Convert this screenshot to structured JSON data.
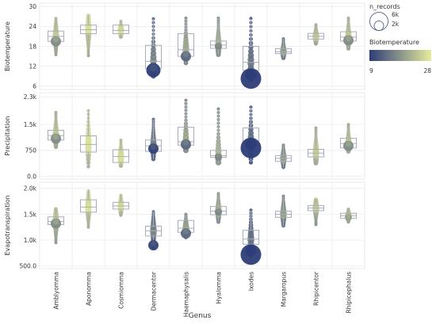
{
  "chart_data": {
    "type": "scatter",
    "xlabel": "Genus",
    "categories": [
      "Amblyomma",
      "Aponomma",
      "Cosmiomma",
      "Dermacentor",
      "Haemaphysalis",
      "Hyalomma",
      "Ixodes",
      "Margaropus",
      "Rhipicentor",
      "Rhipicephalus"
    ],
    "legend": {
      "size_title": "n_records",
      "size_labels": [
        "6k",
        "2k"
      ],
      "color_title": "Biotemperature",
      "color_min": "9",
      "color_max": "28",
      "color_low_hex": "#2e3d78",
      "color_high_hex": "#e6ec9a"
    },
    "panels": [
      {
        "ylabel": "Biotemperature",
        "ylim": [
          5,
          31
        ],
        "ticks": [
          6,
          12,
          18,
          24,
          30
        ],
        "tick_labels": [
          "6",
          "12",
          "18",
          "24",
          "30"
        ],
        "groups": [
          {
            "q1": 19.5,
            "med": 21.0,
            "q3": 22.6,
            "wlo": 18.0,
            "whi": 26.4,
            "ymin": 15.5,
            "ymax": 26.4,
            "big": 2,
            "bigv": 19.5,
            "ctemp": 22
          },
          {
            "q1": 21.8,
            "med": 23.0,
            "q3": 24.4,
            "wlo": 19.8,
            "whi": 27.2,
            "ymin": 15.2,
            "ymax": 27.2,
            "big": 0,
            "bigv": 23.0,
            "ctemp": 24
          },
          {
            "q1": 21.8,
            "med": 22.8,
            "q3": 24.4,
            "wlo": 20.8,
            "whi": 25.6,
            "ymin": 20.8,
            "ymax": 25.6,
            "big": 0,
            "bigv": 22.5,
            "ctemp": 24
          },
          {
            "q1": 11.3,
            "med": 13.5,
            "q3": 18.3,
            "wlo": 9.0,
            "whi": 26.3,
            "ymin": 9.0,
            "ymax": 26.3,
            "big": 3,
            "bigv": 10.8,
            "ctemp": 14
          },
          {
            "q1": 15.0,
            "med": 17.0,
            "q3": 21.8,
            "wlo": 13.0,
            "whi": 26.5,
            "ymin": 13.0,
            "ymax": 26.5,
            "big": 2,
            "bigv": 15.0,
            "ctemp": 18
          },
          {
            "q1": 17.4,
            "med": 18.4,
            "q3": 19.6,
            "wlo": 15.5,
            "whi": 26.5,
            "ymin": 15.5,
            "ymax": 26.5,
            "big": 1,
            "bigv": 18.0,
            "ctemp": 19
          },
          {
            "q1": 10.7,
            "med": 13.2,
            "q3": 18.0,
            "wlo": 7.8,
            "whi": 26.4,
            "ymin": 7.8,
            "ymax": 26.4,
            "big": 4,
            "bigv": 8.3,
            "ctemp": 12
          },
          {
            "q1": 15.8,
            "med": 16.4,
            "q3": 17.3,
            "wlo": 14.5,
            "whi": 20.3,
            "ymin": 14.5,
            "ymax": 20.3,
            "big": 0,
            "bigv": 16.4,
            "ctemp": 17
          },
          {
            "q1": 20.2,
            "med": 21.0,
            "q3": 21.9,
            "wlo": 18.8,
            "whi": 24.5,
            "ymin": 18.8,
            "ymax": 24.5,
            "big": 0,
            "bigv": 21.0,
            "ctemp": 22
          },
          {
            "q1": 19.6,
            "med": 20.8,
            "q3": 22.4,
            "wlo": 17.3,
            "whi": 26.5,
            "ymin": 17.3,
            "ymax": 26.5,
            "big": 2,
            "bigv": 19.8,
            "ctemp": 22
          }
        ]
      },
      {
        "ylabel": "Precipitation",
        "ylim": [
          -80,
          2420
        ],
        "ticks": [
          0,
          750,
          1500,
          2300
        ],
        "tick_labels": [
          "0.0",
          "750",
          "1.5k",
          "2.3k"
        ],
        "groups": [
          {
            "q1": 1050,
            "med": 1180,
            "q3": 1330,
            "wlo": 900,
            "whi": 1850,
            "ymin": 850,
            "ymax": 1850,
            "big": 2,
            "bigv": 1090,
            "ctemp": 22
          },
          {
            "q1": 700,
            "med": 920,
            "q3": 1170,
            "wlo": 280,
            "whi": 1900,
            "ymin": 280,
            "ymax": 1900,
            "big": 0,
            "bigv": 900,
            "ctemp": 24
          },
          {
            "q1": 400,
            "med": 570,
            "q3": 770,
            "wlo": 300,
            "whi": 1050,
            "ymin": 300,
            "ymax": 1050,
            "big": 0,
            "bigv": 560,
            "ctemp": 24
          },
          {
            "q1": 720,
            "med": 880,
            "q3": 1050,
            "wlo": 500,
            "whi": 1650,
            "ymin": 500,
            "ymax": 1650,
            "big": 2,
            "bigv": 800,
            "ctemp": 14
          },
          {
            "q1": 900,
            "med": 1000,
            "q3": 1420,
            "wlo": 750,
            "whi": 2200,
            "ymin": 750,
            "ymax": 2200,
            "big": 2,
            "bigv": 920,
            "ctemp": 18
          },
          {
            "q1": 550,
            "med": 600,
            "q3": 750,
            "wlo": 400,
            "whi": 1950,
            "ymin": 400,
            "ymax": 1950,
            "big": 1,
            "bigv": 560,
            "ctemp": 19
          },
          {
            "q1": 720,
            "med": 980,
            "q3": 1400,
            "wlo": 400,
            "whi": 2000,
            "ymin": 400,
            "ymax": 2000,
            "big": 4,
            "bigv": 820,
            "ctemp": 12
          },
          {
            "q1": 430,
            "med": 520,
            "q3": 600,
            "wlo": 260,
            "whi": 900,
            "ymin": 260,
            "ymax": 900,
            "big": 0,
            "bigv": 520,
            "ctemp": 17
          },
          {
            "q1": 560,
            "med": 670,
            "q3": 780,
            "wlo": 380,
            "whi": 1400,
            "ymin": 380,
            "ymax": 1400,
            "big": 0,
            "bigv": 660,
            "ctemp": 22
          },
          {
            "q1": 820,
            "med": 950,
            "q3": 1100,
            "wlo": 720,
            "whi": 1500,
            "ymin": 720,
            "ymax": 1500,
            "big": 2,
            "bigv": 880,
            "ctemp": 22
          }
        ]
      },
      {
        "ylabel": "Evapotranspiration",
        "ylim": [
          450,
          2120
        ],
        "ticks": [
          500,
          1000,
          1500,
          2000
        ],
        "tick_labels": [
          "500.0",
          "1.0k",
          "1.5k",
          "2.0k"
        ],
        "groups": [
          {
            "q1": 1300,
            "med": 1360,
            "q3": 1450,
            "wlo": 1150,
            "whi": 1600,
            "ymin": 950,
            "ymax": 1600,
            "big": 2,
            "bigv": 1320,
            "ctemp": 22
          },
          {
            "q1": 1540,
            "med": 1640,
            "q3": 1780,
            "wlo": 1400,
            "whi": 1950,
            "ymin": 1250,
            "ymax": 1950,
            "big": 0,
            "bigv": 1640,
            "ctemp": 24
          },
          {
            "q1": 1600,
            "med": 1660,
            "q3": 1730,
            "wlo": 1480,
            "whi": 1870,
            "ymin": 1480,
            "ymax": 1870,
            "big": 0,
            "bigv": 1660,
            "ctemp": 24
          },
          {
            "q1": 1080,
            "med": 1180,
            "q3": 1270,
            "wlo": 850,
            "whi": 1550,
            "ymin": 850,
            "ymax": 1550,
            "big": 2,
            "bigv": 900,
            "ctemp": 14
          },
          {
            "q1": 1150,
            "med": 1230,
            "q3": 1380,
            "wlo": 1050,
            "whi": 1500,
            "ymin": 1050,
            "ymax": 1500,
            "big": 2,
            "bigv": 1130,
            "ctemp": 18
          },
          {
            "q1": 1490,
            "med": 1560,
            "q3": 1650,
            "wlo": 1350,
            "whi": 1900,
            "ymin": 1350,
            "ymax": 1900,
            "big": 1,
            "bigv": 1540,
            "ctemp": 19
          },
          {
            "q1": 920,
            "med": 1020,
            "q3": 1190,
            "wlo": 700,
            "whi": 1580,
            "ymin": 700,
            "ymax": 1580,
            "big": 4,
            "bigv": 720,
            "ctemp": 12
          },
          {
            "q1": 1440,
            "med": 1500,
            "q3": 1560,
            "wlo": 1280,
            "whi": 1850,
            "ymin": 1280,
            "ymax": 1850,
            "big": 0,
            "bigv": 1500,
            "ctemp": 17
          },
          {
            "q1": 1570,
            "med": 1620,
            "q3": 1670,
            "wlo": 1450,
            "whi": 1780,
            "ymin": 1300,
            "ymax": 1780,
            "big": 0,
            "bigv": 1620,
            "ctemp": 22
          },
          {
            "q1": 1420,
            "med": 1470,
            "q3": 1520,
            "wlo": 1350,
            "whi": 1600,
            "ymin": 1350,
            "ymax": 1600,
            "big": 1,
            "bigv": 1440,
            "ctemp": 22
          }
        ]
      }
    ]
  }
}
